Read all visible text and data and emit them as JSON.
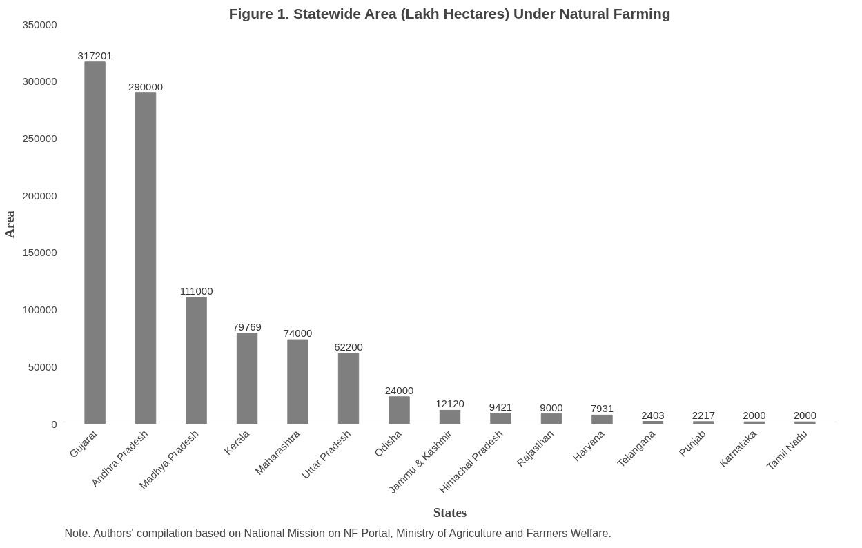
{
  "chart_data": {
    "type": "bar",
    "title": "Figure 1. Statewide Area (Lakh Hectares) Under Natural Farming",
    "xlabel": "States",
    "ylabel": "Area",
    "categories": [
      "Gujarat",
      "Andhra Pradesh",
      "Madhya Pradesh",
      "Kerala",
      "Maharashtra",
      "Uttar Pradesh",
      "Odisha",
      "Jammu & Kashmir",
      "Himachal Pradesh",
      "Rajasthan",
      "Haryana",
      "Telangana",
      "Punjab",
      "Karnataka",
      "Tamil Nadu"
    ],
    "values": [
      317201,
      290000,
      111000,
      79769,
      74000,
      62200,
      24000,
      12120,
      9421,
      9000,
      7931,
      2403,
      2217,
      2000,
      2000
    ],
    "color": "#7f7f7f",
    "ylim": [
      0,
      350000
    ],
    "yticks": [
      0,
      50000,
      100000,
      150000,
      200000,
      250000,
      300000,
      350000
    ],
    "grid": false,
    "data_labels": true,
    "annotations": [
      "Note. Authors' compilation based on National Mission on NF Portal, Ministry of Agriculture and Farmers Welfare."
    ]
  }
}
